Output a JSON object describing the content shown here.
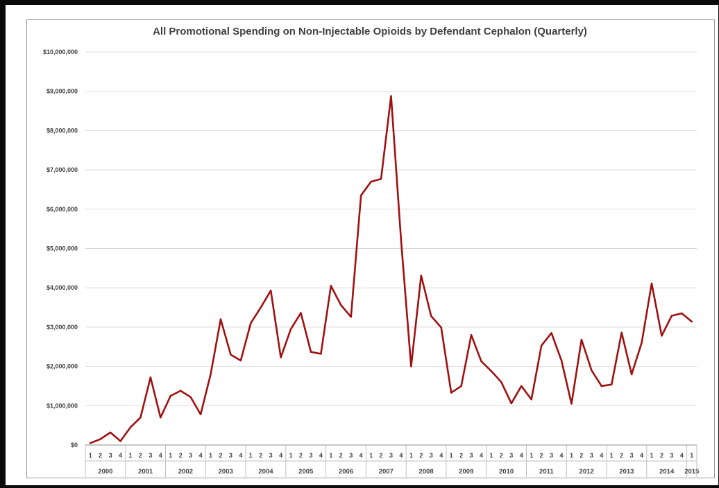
{
  "chart_data": {
    "type": "line",
    "title": "All Promotional Spending on Non-Injectable Opioids by Defendant Cephalon (Quarterly)",
    "xlabel": "",
    "ylabel": "",
    "ylim": [
      0,
      10000000
    ],
    "y_ticks": [
      0,
      1000000,
      2000000,
      3000000,
      4000000,
      5000000,
      6000000,
      7000000,
      8000000,
      9000000,
      10000000
    ],
    "y_tick_labels": [
      "$0",
      "$1,000,000",
      "$2,000,000",
      "$3,000,000",
      "$4,000,000",
      "$5,000,000",
      "$6,000,000",
      "$7,000,000",
      "$8,000,000",
      "$9,000,000",
      "$10,000,000"
    ],
    "grid": true,
    "legend": "none",
    "line_color": "#a01010",
    "years": [
      "2000",
      "2001",
      "2002",
      "2003",
      "2004",
      "2005",
      "2006",
      "2007",
      "2008",
      "2009",
      "2010",
      "2011",
      "2012",
      "2013",
      "2014",
      "2015"
    ],
    "quarter_labels": [
      "1",
      "2",
      "3",
      "4",
      "1",
      "2",
      "3",
      "4",
      "1",
      "2",
      "3",
      "4",
      "1",
      "2",
      "3",
      "4",
      "1",
      "2",
      "3",
      "4",
      "1",
      "2",
      "3",
      "4",
      "1",
      "2",
      "3",
      "4",
      "1",
      "2",
      "3",
      "4",
      "1",
      "2",
      "3",
      "4",
      "1",
      "2",
      "3",
      "4",
      "1",
      "2",
      "3",
      "4",
      "1",
      "2",
      "3",
      "4",
      "1",
      "2",
      "3",
      "4",
      "1",
      "2",
      "3",
      "4",
      "1",
      "2",
      "3",
      "4",
      "1"
    ],
    "series": [
      {
        "values": [
          50000,
          150000,
          320000,
          100000,
          450000,
          700000,
          1720000,
          700000,
          1250000,
          1380000,
          1220000,
          780000,
          1800000,
          3200000,
          2300000,
          2150000,
          3100000,
          3500000,
          3930000,
          2230000,
          2950000,
          3360000,
          2370000,
          2320000,
          4050000,
          3560000,
          3260000,
          6350000,
          6700000,
          6770000,
          8880000,
          5200000,
          2000000,
          4310000,
          3280000,
          2990000,
          1330000,
          1500000,
          2800000,
          2130000,
          1880000,
          1600000,
          1060000,
          1500000,
          1160000,
          2530000,
          2850000,
          2150000,
          1050000,
          2680000,
          1900000,
          1500000,
          1540000,
          2860000,
          1800000,
          2600000,
          4110000,
          2780000,
          3290000,
          3350000,
          3140000
        ]
      }
    ]
  }
}
